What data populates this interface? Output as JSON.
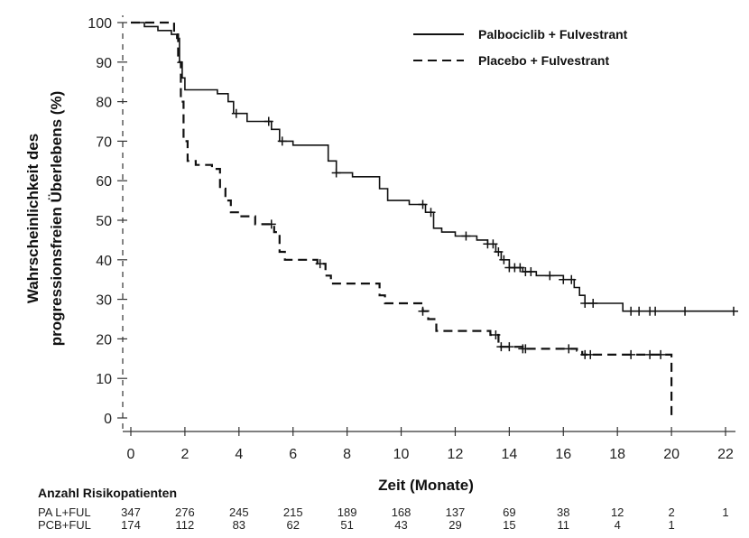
{
  "chart_data": {
    "type": "line",
    "xlabel": "Zeit (Monate)",
    "ylabel_line1": "Wahrscheinlichkeit des",
    "ylabel_line2": "progressionsfreien Überlebens (%)",
    "xlim": [
      0,
      22
    ],
    "ylim": [
      0,
      100
    ],
    "xticks": [
      0,
      2,
      4,
      6,
      8,
      10,
      12,
      14,
      16,
      18,
      20,
      22
    ],
    "yticks": [
      0,
      10,
      20,
      30,
      40,
      50,
      60,
      70,
      80,
      90,
      100
    ],
    "grid": false,
    "legend_position": "top-right",
    "series": [
      {
        "name": "Palbociclib + Fulvestrant",
        "line_style": "solid",
        "color": "#111111",
        "steps": [
          [
            0,
            100
          ],
          [
            0.5,
            99
          ],
          [
            1,
            98
          ],
          [
            1.5,
            97
          ],
          [
            1.7,
            96
          ],
          [
            1.8,
            90
          ],
          [
            1.9,
            86
          ],
          [
            2.0,
            83
          ],
          [
            3.2,
            82
          ],
          [
            3.6,
            80
          ],
          [
            3.8,
            77
          ],
          [
            4.3,
            75
          ],
          [
            5.2,
            73
          ],
          [
            5.5,
            70
          ],
          [
            6.0,
            69
          ],
          [
            7.3,
            65
          ],
          [
            7.6,
            62
          ],
          [
            8.2,
            61
          ],
          [
            9.2,
            58
          ],
          [
            9.5,
            55
          ],
          [
            10.3,
            54
          ],
          [
            10.9,
            52
          ],
          [
            11.2,
            48
          ],
          [
            11.5,
            47
          ],
          [
            12.0,
            46
          ],
          [
            12.8,
            45
          ],
          [
            13.2,
            44
          ],
          [
            13.5,
            42
          ],
          [
            13.7,
            40
          ],
          [
            14.0,
            38
          ],
          [
            14.5,
            37
          ],
          [
            15.0,
            36
          ],
          [
            16.0,
            35
          ],
          [
            16.4,
            33
          ],
          [
            16.6,
            31
          ],
          [
            16.8,
            29
          ],
          [
            18.2,
            27
          ],
          [
            22.3,
            27
          ]
        ],
        "censor_x": [
          3.9,
          5.1,
          5.6,
          7.6,
          10.8,
          11.1,
          12.4,
          13.2,
          13.4,
          13.6,
          13.8,
          14.0,
          14.2,
          14.4,
          14.6,
          14.8,
          15.5,
          16.0,
          16.3,
          16.8,
          17.1,
          18.5,
          18.8,
          19.2,
          19.4,
          20.5,
          22.3
        ]
      },
      {
        "name": "Placebo + Fulvestrant",
        "line_style": "dashed",
        "color": "#111111",
        "steps": [
          [
            0,
            100
          ],
          [
            1.6,
            97
          ],
          [
            1.75,
            90
          ],
          [
            1.85,
            80
          ],
          [
            1.95,
            70
          ],
          [
            2.1,
            65
          ],
          [
            2.4,
            64
          ],
          [
            3.0,
            63
          ],
          [
            3.3,
            58
          ],
          [
            3.5,
            55
          ],
          [
            3.7,
            52
          ],
          [
            4.0,
            51
          ],
          [
            4.6,
            49
          ],
          [
            5.3,
            47
          ],
          [
            5.5,
            42
          ],
          [
            5.7,
            40
          ],
          [
            6.9,
            39
          ],
          [
            7.2,
            36
          ],
          [
            7.4,
            34
          ],
          [
            9.2,
            31
          ],
          [
            9.4,
            29
          ],
          [
            10.8,
            27
          ],
          [
            11.0,
            25
          ],
          [
            11.3,
            22
          ],
          [
            13.3,
            21
          ],
          [
            13.6,
            18
          ],
          [
            14.5,
            17.5
          ],
          [
            16.5,
            17
          ],
          [
            16.7,
            16
          ],
          [
            20.0,
            16
          ],
          [
            20.0,
            0
          ]
        ],
        "censor_x": [
          5.2,
          7.0,
          10.8,
          13.5,
          13.7,
          14.0,
          14.5,
          14.6,
          16.2,
          16.8,
          17.0,
          18.5,
          19.2,
          19.6
        ]
      }
    ],
    "risk_table": {
      "title": "Anzahl Risikopatienten",
      "rows": [
        {
          "label": "PA L+FUL",
          "values": [
            "347",
            "276",
            "245",
            "215",
            "189",
            "168",
            "137",
            "69",
            "38",
            "12",
            "2",
            "1"
          ]
        },
        {
          "label": "PCB+FUL",
          "values": [
            "174",
            "112",
            "83",
            "62",
            "51",
            "43",
            "29",
            "15",
            "11",
            "4",
            "1",
            ""
          ]
        }
      ]
    }
  }
}
